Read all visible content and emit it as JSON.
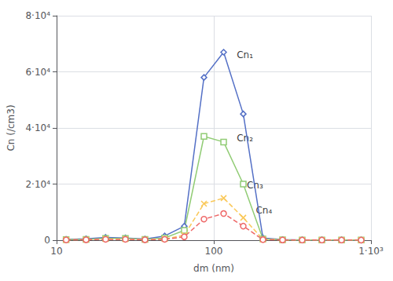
{
  "chart_data": {
    "type": "line",
    "xlabel": "dm (nm)",
    "ylabel": "Cn (/cm3)",
    "log": "x",
    "grid": true,
    "xlim": [
      10,
      1000
    ],
    "xticks": [
      10,
      100,
      {
        "value": 1000,
        "label": "1·10³"
      }
    ],
    "ylim": [
      0,
      80000
    ],
    "yticks": [
      0,
      {
        "value": 20000,
        "label": "2·10⁴"
      },
      {
        "value": 40000,
        "label": "4·10⁴"
      },
      {
        "value": 60000,
        "label": "6·10⁴"
      },
      {
        "value": 80000,
        "label": "8·10⁴"
      }
    ],
    "series": [
      {
        "name": "Cn₁",
        "marker": "diamond",
        "line_style": "solid",
        "x": [
          11.5,
          15.4,
          20.5,
          27.4,
          36.5,
          48.7,
          64.9,
          86.6,
          115.5,
          154.0,
          205.4,
          273.8,
          365.0,
          487.0,
          649.6,
          866.0
        ],
        "values": [
          300,
          500,
          1000,
          800,
          400,
          1500,
          5000,
          58000,
          67000,
          45000,
          800,
          200,
          100,
          100,
          100,
          50
        ]
      },
      {
        "name": "Cn₂",
        "marker": "square",
        "line_style": "solid",
        "x": [
          11.5,
          15.4,
          20.5,
          27.4,
          36.5,
          48.7,
          64.9,
          86.6,
          115.5,
          154.0,
          205.4,
          273.8,
          365.0,
          487.0,
          649.6,
          866.0
        ],
        "values": [
          200,
          300,
          600,
          600,
          300,
          800,
          3500,
          37000,
          35000,
          20000,
          400,
          150,
          100,
          100,
          100,
          50
        ]
      },
      {
        "name": "Cn₃",
        "marker": "x",
        "line_style": "dashed",
        "x": [
          11.5,
          15.4,
          20.5,
          27.4,
          36.5,
          48.7,
          64.9,
          86.6,
          115.5,
          154.0,
          205.4,
          273.8,
          365.0,
          487.0,
          649.6,
          866.0
        ],
        "values": [
          100,
          200,
          400,
          350,
          200,
          400,
          1800,
          13000,
          15000,
          8000,
          300,
          100,
          50,
          50,
          50,
          30
        ]
      },
      {
        "name": "Cn₄",
        "marker": "circle",
        "line_style": "dashed",
        "x": [
          11.5,
          15.4,
          20.5,
          27.4,
          36.5,
          48.7,
          64.9,
          86.6,
          115.5,
          154.0,
          205.4,
          273.8,
          365.0,
          487.0,
          649.6,
          866.0
        ],
        "values": [
          100,
          150,
          300,
          300,
          150,
          300,
          1200,
          7500,
          9500,
          5000,
          200,
          80,
          50,
          50,
          50,
          30
        ]
      }
    ],
    "annotations": [
      {
        "text": "Cn₁",
        "x": 140,
        "y": 66000
      },
      {
        "text": "Cn₂",
        "x": 140,
        "y": 36500
      },
      {
        "text": "Cn₃",
        "x": 162,
        "y": 19500
      },
      {
        "text": "Cn₄",
        "x": 185,
        "y": 10500
      }
    ]
  }
}
